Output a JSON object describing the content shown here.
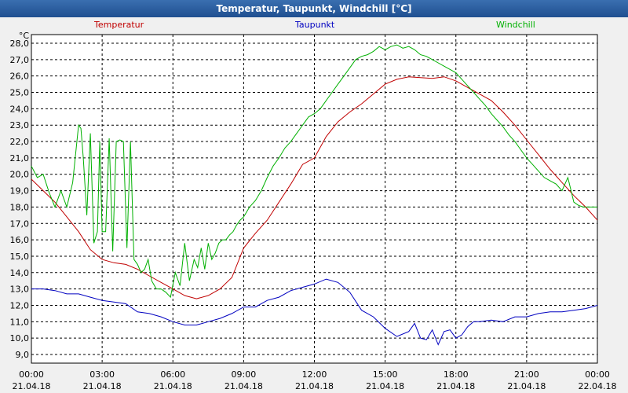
{
  "window": {
    "title": "Temperatur, Taupunkt, Windchill [°C]"
  },
  "chart_data": {
    "type": "line",
    "title": "Temperatur, Taupunkt, Windchill [°C]",
    "ylabel": "°C",
    "ylim": [
      9.0,
      28.0
    ],
    "xlim": [
      0,
      24
    ],
    "yticks": [
      "9,0",
      "10,0",
      "11,0",
      "12,0",
      "13,0",
      "14,0",
      "15,0",
      "16,0",
      "17,0",
      "18,0",
      "19,0",
      "20,0",
      "21,0",
      "22,0",
      "23,0",
      "24,0",
      "25,0",
      "26,0",
      "27,0",
      "28,0"
    ],
    "xticks": [
      {
        "time": "00:00",
        "date": "21.04.18"
      },
      {
        "time": "03:00",
        "date": "21.04.18"
      },
      {
        "time": "06:00",
        "date": "21.04.18"
      },
      {
        "time": "09:00",
        "date": "21.04.18"
      },
      {
        "time": "12:00",
        "date": "21.04.18"
      },
      {
        "time": "15:00",
        "date": "21.04.18"
      },
      {
        "time": "18:00",
        "date": "21.04.18"
      },
      {
        "time": "21:00",
        "date": "21.04.18"
      },
      {
        "time": "00:00",
        "date": "22.04.18"
      }
    ],
    "series": [
      {
        "name": "Temperatur",
        "color": "#c00000",
        "x": [
          0,
          0.5,
          1,
          1.5,
          2,
          2.5,
          3,
          3.5,
          4,
          4.5,
          5,
          5.5,
          6,
          6.5,
          7,
          7.5,
          8,
          8.5,
          9,
          9.5,
          10,
          10.5,
          11,
          11.5,
          12,
          12.5,
          13,
          13.5,
          14,
          14.5,
          15,
          15.5,
          16,
          16.5,
          17,
          17.5,
          18,
          18.5,
          19,
          19.5,
          20,
          20.5,
          21,
          21.5,
          22,
          22.5,
          23,
          23.5,
          24
        ],
        "values": [
          19.7,
          19.0,
          18.3,
          17.4,
          16.5,
          15.4,
          14.8,
          14.6,
          14.5,
          14.2,
          13.8,
          13.4,
          13.0,
          12.6,
          12.4,
          12.6,
          13.0,
          13.7,
          15.5,
          16.4,
          17.2,
          18.3,
          19.4,
          20.6,
          21.0,
          22.3,
          23.2,
          23.8,
          24.3,
          24.9,
          25.5,
          25.8,
          25.95,
          25.9,
          25.85,
          25.95,
          25.7,
          25.3,
          24.9,
          24.5,
          23.8,
          23.0,
          22.1,
          21.2,
          20.3,
          19.5,
          18.7,
          18.0,
          17.2
        ]
      },
      {
        "name": "Taupunkt",
        "color": "#0000c0",
        "x": [
          0,
          0.5,
          1,
          1.5,
          2,
          2.5,
          3,
          3.5,
          4,
          4.5,
          5,
          5.5,
          6,
          6.5,
          7,
          7.5,
          8,
          8.5,
          9,
          9.5,
          10,
          10.5,
          11,
          11.5,
          12,
          12.5,
          13,
          13.5,
          14,
          14.5,
          15,
          15.5,
          16,
          16.25,
          16.5,
          16.75,
          17,
          17.25,
          17.5,
          17.75,
          18,
          18.25,
          18.5,
          18.75,
          19,
          19.5,
          20,
          20.5,
          21,
          21.5,
          22,
          22.5,
          23,
          23.5,
          24
        ],
        "values": [
          13.0,
          13.0,
          12.9,
          12.7,
          12.7,
          12.5,
          12.3,
          12.2,
          12.1,
          11.6,
          11.5,
          11.3,
          11.0,
          10.8,
          10.8,
          11.0,
          11.2,
          11.5,
          11.9,
          11.9,
          12.3,
          12.5,
          12.9,
          13.1,
          13.3,
          13.6,
          13.4,
          12.8,
          11.7,
          11.3,
          10.6,
          10.1,
          10.4,
          10.9,
          10.0,
          9.9,
          10.5,
          9.6,
          10.4,
          10.5,
          10.0,
          10.2,
          10.7,
          11.0,
          11.0,
          11.1,
          11.0,
          11.3,
          11.3,
          11.5,
          11.6,
          11.6,
          11.7,
          11.8,
          12.0
        ]
      },
      {
        "name": "Windchill",
        "color": "#00b000",
        "x": [
          0,
          0.25,
          0.5,
          0.75,
          1,
          1.25,
          1.5,
          1.75,
          2,
          2.1,
          2.2,
          2.35,
          2.5,
          2.65,
          2.8,
          2.9,
          3,
          3.15,
          3.3,
          3.45,
          3.6,
          3.75,
          3.9,
          4.05,
          4.2,
          4.35,
          4.5,
          4.65,
          4.8,
          4.95,
          5.1,
          5.3,
          5.5,
          5.7,
          5.9,
          6.1,
          6.3,
          6.5,
          6.7,
          6.9,
          7.05,
          7.2,
          7.35,
          7.5,
          7.65,
          7.8,
          7.95,
          8.1,
          8.25,
          8.4,
          8.55,
          8.7,
          8.85,
          9,
          9.25,
          9.5,
          9.75,
          10,
          10.25,
          10.5,
          10.75,
          11,
          11.25,
          11.5,
          11.75,
          12,
          12.25,
          12.5,
          12.75,
          13,
          13.25,
          13.5,
          13.75,
          14,
          14.25,
          14.5,
          14.75,
          15,
          15.25,
          15.5,
          15.75,
          16,
          16.25,
          16.5,
          16.75,
          17,
          17.25,
          17.5,
          17.75,
          18,
          18.25,
          18.5,
          18.75,
          19,
          19.25,
          19.5,
          19.75,
          20,
          20.25,
          20.5,
          20.75,
          21,
          21.25,
          21.5,
          21.75,
          22,
          22.25,
          22.5,
          22.75,
          23,
          23.2,
          23.4,
          23.6,
          23.8,
          24
        ],
        "values": [
          20.5,
          19.8,
          20.0,
          18.9,
          18.0,
          19.0,
          18.0,
          19.5,
          23.0,
          22.8,
          21.0,
          17.5,
          22.5,
          15.8,
          16.5,
          22.0,
          16.5,
          16.5,
          22.2,
          15.3,
          22.0,
          22.1,
          22.0,
          15.5,
          22.0,
          14.8,
          14.5,
          14.0,
          14.2,
          14.8,
          13.5,
          13.0,
          13.0,
          12.8,
          12.5,
          14.0,
          13.2,
          15.8,
          13.5,
          14.8,
          14.3,
          15.5,
          14.2,
          15.8,
          14.8,
          15.2,
          15.8,
          16.0,
          16.0,
          16.3,
          16.5,
          16.9,
          17.2,
          17.4,
          18.0,
          18.4,
          19.0,
          19.8,
          20.5,
          21.0,
          21.6,
          22.0,
          22.5,
          23.0,
          23.5,
          23.7,
          24.0,
          24.5,
          25.0,
          25.5,
          26.0,
          26.5,
          27.0,
          27.2,
          27.3,
          27.5,
          27.8,
          27.6,
          27.8,
          27.9,
          27.7,
          27.8,
          27.6,
          27.3,
          27.2,
          27.0,
          26.8,
          26.6,
          26.4,
          26.2,
          25.8,
          25.4,
          25.0,
          24.6,
          24.2,
          23.7,
          23.3,
          22.9,
          22.4,
          22.0,
          21.5,
          21.0,
          20.6,
          20.2,
          19.8,
          19.6,
          19.4,
          19.0,
          19.8,
          18.3,
          18.1,
          18.0,
          18.0,
          18.0,
          18.0
        ]
      }
    ]
  }
}
